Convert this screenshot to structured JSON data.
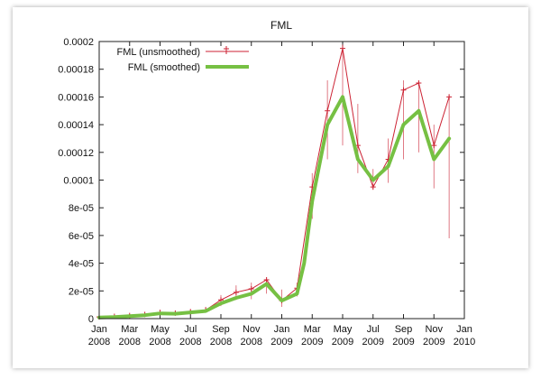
{
  "chart_data": {
    "type": "line",
    "title": "FML",
    "xlabel": "",
    "ylabel": "",
    "x_range": [
      "2008-01",
      "2010-01"
    ],
    "ylim": [
      0,
      0.0002
    ],
    "y_ticks": [
      "0",
      "2e-05",
      "4e-05",
      "6e-05",
      "8e-05",
      "0.0001",
      "0.00012",
      "0.00014",
      "0.00016",
      "0.00018",
      "0.0002"
    ],
    "x_ticks": [
      {
        "month": "Jan",
        "year": "2008",
        "date": "2008-01"
      },
      {
        "month": "Mar",
        "year": "2008",
        "date": "2008-03"
      },
      {
        "month": "May",
        "year": "2008",
        "date": "2008-05"
      },
      {
        "month": "Jul",
        "year": "2008",
        "date": "2008-07"
      },
      {
        "month": "Sep",
        "year": "2008",
        "date": "2008-09"
      },
      {
        "month": "Nov",
        "year": "2008",
        "date": "2008-11"
      },
      {
        "month": "Jan",
        "year": "2009",
        "date": "2009-01"
      },
      {
        "month": "Mar",
        "year": "2009",
        "date": "2009-03"
      },
      {
        "month": "May",
        "year": "2009",
        "date": "2009-05"
      },
      {
        "month": "Jul",
        "year": "2009",
        "date": "2009-07"
      },
      {
        "month": "Sep",
        "year": "2009",
        "date": "2009-09"
      },
      {
        "month": "Nov",
        "year": "2009",
        "date": "2009-11"
      },
      {
        "month": "Jan",
        "year": "2010",
        "date": "2010-01"
      }
    ],
    "legend_position": "top-left",
    "grid": false,
    "series": [
      {
        "name": "FML (unsmoothed)",
        "color": "#cc2233",
        "style": "line-with-plus-markers",
        "x": [
          "2008-01",
          "2008-02",
          "2008-03",
          "2008-04",
          "2008-05",
          "2008-06",
          "2008-07",
          "2008-08",
          "2008-09",
          "2008-10",
          "2008-11",
          "2008-12",
          "2009-01",
          "2009-02",
          "2009-03",
          "2009-04",
          "2009-05",
          "2009-06",
          "2009-07",
          "2009-08",
          "2009-09",
          "2009-10",
          "2009-11",
          "2009-12"
        ],
        "values": [
          1.2e-06,
          1.6e-06,
          2.2e-06,
          3e-06,
          4.5e-06,
          4e-06,
          5e-06,
          6.2e-06,
          1.35e-05,
          1.9e-05,
          2.15e-05,
          2.8e-05,
          1.3e-05,
          2.2e-05,
          9.5e-05,
          0.00015,
          0.000195,
          0.000125,
          9.5e-05,
          0.000115,
          0.000165,
          0.00017,
          0.000125,
          0.00016
        ],
        "low": [
          5e-07,
          8e-07,
          1.2e-06,
          1.8e-06,
          3e-06,
          2.8e-06,
          3.5e-06,
          4.5e-06,
          9e-06,
          1.35e-05,
          1.4e-05,
          1.8e-05,
          8.5e-06,
          1.6e-05,
          7.2e-05,
          0.000115,
          0.000125,
          0.000105,
          9.3e-05,
          9.8e-05,
          0.000115,
          0.00012,
          9.4e-05,
          5.8e-05
        ],
        "high": [
          2e-06,
          2.5e-06,
          3.2e-06,
          4.5e-06,
          6e-06,
          5.5e-06,
          6.8e-06,
          8.5e-06,
          1.7e-05,
          2.4e-05,
          2.6e-05,
          2.9e-05,
          2.1e-05,
          2.6e-05,
          0.000105,
          0.000172,
          0.000198,
          0.000155,
          0.000108,
          0.00013,
          0.000172,
          0.000172,
          0.00014,
          0.000162
        ]
      },
      {
        "name": "FML (smoothed)",
        "color": "#76c043",
        "style": "thick-line",
        "x": [
          "2008-01",
          "2008-02",
          "2008-03",
          "2008-04",
          "2008-05",
          "2008-06",
          "2008-07",
          "2008-08",
          "2008-09",
          "2008-10",
          "2008-11",
          "2008-12",
          "2009-01",
          "2009-02",
          "2009-02-15",
          "2009-03",
          "2009-04",
          "2009-05",
          "2009-06",
          "2009-07",
          "2009-08",
          "2009-09",
          "2009-10",
          "2009-11",
          "2009-12"
        ],
        "values": [
          8e-07,
          1.2e-06,
          1.8e-06,
          2.5e-06,
          3.8e-06,
          3.5e-06,
          4.5e-06,
          5.5e-06,
          1.1e-05,
          1.5e-05,
          1.8e-05,
          2.5e-05,
          1.3e-05,
          1.8e-05,
          4e-05,
          8.5e-05,
          0.00014,
          0.00016,
          0.000115,
          0.0001,
          0.00011,
          0.00014,
          0.00015,
          0.000115,
          0.00013
        ]
      }
    ]
  }
}
